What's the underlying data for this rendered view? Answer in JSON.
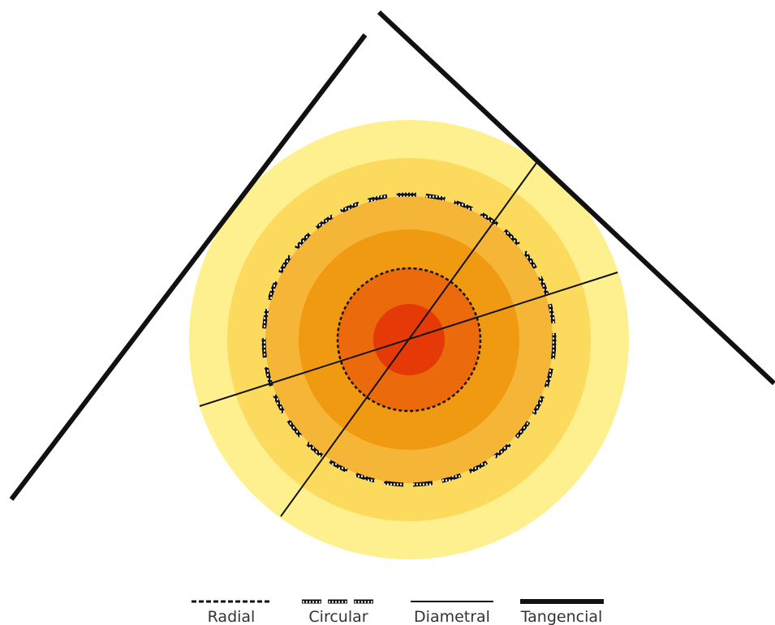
{
  "diagram": {
    "zones": [
      {
        "name": "zone-1",
        "color": "#FFF08F"
      },
      {
        "name": "zone-2",
        "color": "#FBDA5D"
      },
      {
        "name": "zone-3",
        "color": "#F5B536"
      },
      {
        "name": "zone-4",
        "color": "#F09A12"
      },
      {
        "name": "zone-5",
        "color": "#EB6A0C"
      },
      {
        "name": "zone-6",
        "color": "#E53A07"
      }
    ],
    "line_color": "#111111"
  },
  "legend": {
    "radial": "Radial",
    "circular": "Circular",
    "diametral": "Diametral",
    "tangencial": "Tangencial"
  }
}
